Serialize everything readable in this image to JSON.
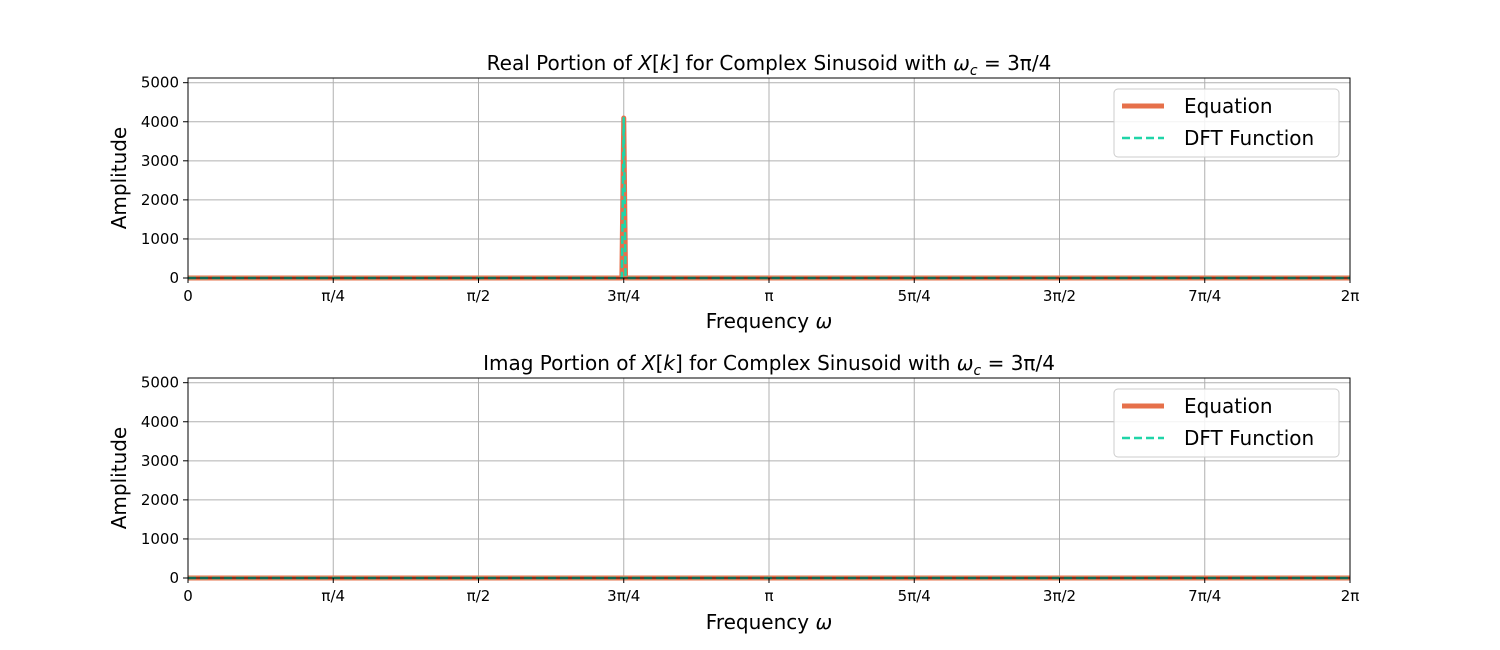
{
  "chart_data": [
    {
      "type": "line",
      "title": "Real Portion of X[k] for Complex Sinusoid with ω_c = 3π/4",
      "title_parts": {
        "prefix": "Real Portion of ",
        "X": "X",
        "k": "k",
        "middle": " for Complex Sinusoid with ",
        "omega": "ω",
        "sub": "c",
        "equals": " = 3π/4"
      },
      "xlabel": "Frequency ω",
      "xlabel_parts": {
        "text": "Frequency ",
        "omega": "ω"
      },
      "ylabel": "Amplitude",
      "xlim": [
        0,
        6.283185307
      ],
      "ylim": [
        0,
        5120
      ],
      "x_ticks": [
        {
          "value": 0,
          "label": "0"
        },
        {
          "value": 0.785398163,
          "label": "π/4"
        },
        {
          "value": 1.570796327,
          "label": "π/2"
        },
        {
          "value": 2.35619449,
          "label": "3π/4"
        },
        {
          "value": 3.141592654,
          "label": "π"
        },
        {
          "value": 3.926990817,
          "label": "5π/4"
        },
        {
          "value": 4.71238898,
          "label": "3π/2"
        },
        {
          "value": 5.497787144,
          "label": "7π/4"
        },
        {
          "value": 6.283185307,
          "label": "2π"
        }
      ],
      "y_ticks": [
        {
          "value": 0,
          "label": "0"
        },
        {
          "value": 1000,
          "label": "1000"
        },
        {
          "value": 2000,
          "label": "2000"
        },
        {
          "value": 3000,
          "label": "3000"
        },
        {
          "value": 4000,
          "label": "4000"
        },
        {
          "value": 5000,
          "label": "5000"
        }
      ],
      "grid": true,
      "legend": "top-right",
      "series": [
        {
          "name": "Equation",
          "color": "#e6704a",
          "style": "solid",
          "x": [
            0,
            2.346,
            2.35619449,
            2.366,
            6.283185307
          ],
          "values": [
            0,
            0,
            4096,
            0,
            0
          ]
        },
        {
          "name": "DFT Function",
          "color": "#1fd5a8",
          "style": "dashed",
          "x": [
            0,
            2.346,
            2.35619449,
            2.366,
            6.283185307
          ],
          "values": [
            0,
            0,
            4096,
            0,
            0
          ]
        }
      ]
    },
    {
      "type": "line",
      "title": "Imag Portion of X[k] for Complex Sinusoid with ω_c = 3π/4",
      "title_parts": {
        "prefix": "Imag Portion of ",
        "X": "X",
        "k": "k",
        "middle": " for Complex Sinusoid with ",
        "omega": "ω",
        "sub": "c",
        "equals": " = 3π/4"
      },
      "xlabel": "Frequency ω",
      "xlabel_parts": {
        "text": "Frequency ",
        "omega": "ω"
      },
      "ylabel": "Amplitude",
      "xlim": [
        0,
        6.283185307
      ],
      "ylim": [
        0,
        5120
      ],
      "x_ticks": [
        {
          "value": 0,
          "label": "0"
        },
        {
          "value": 0.785398163,
          "label": "π/4"
        },
        {
          "value": 1.570796327,
          "label": "π/2"
        },
        {
          "value": 2.35619449,
          "label": "3π/4"
        },
        {
          "value": 3.141592654,
          "label": "π"
        },
        {
          "value": 3.926990817,
          "label": "5π/4"
        },
        {
          "value": 4.71238898,
          "label": "3π/2"
        },
        {
          "value": 5.497787144,
          "label": "7π/4"
        },
        {
          "value": 6.283185307,
          "label": "2π"
        }
      ],
      "y_ticks": [
        {
          "value": 0,
          "label": "0"
        },
        {
          "value": 1000,
          "label": "1000"
        },
        {
          "value": 2000,
          "label": "2000"
        },
        {
          "value": 3000,
          "label": "3000"
        },
        {
          "value": 4000,
          "label": "4000"
        },
        {
          "value": 5000,
          "label": "5000"
        }
      ],
      "grid": true,
      "legend": "top-right",
      "series": [
        {
          "name": "Equation",
          "color": "#e6704a",
          "style": "solid",
          "x": [
            0,
            6.283185307
          ],
          "values": [
            0,
            0
          ]
        },
        {
          "name": "DFT Function",
          "color": "#1fd5a8",
          "style": "dashed",
          "x": [
            0,
            6.283185307
          ],
          "values": [
            0,
            0
          ]
        }
      ]
    }
  ]
}
